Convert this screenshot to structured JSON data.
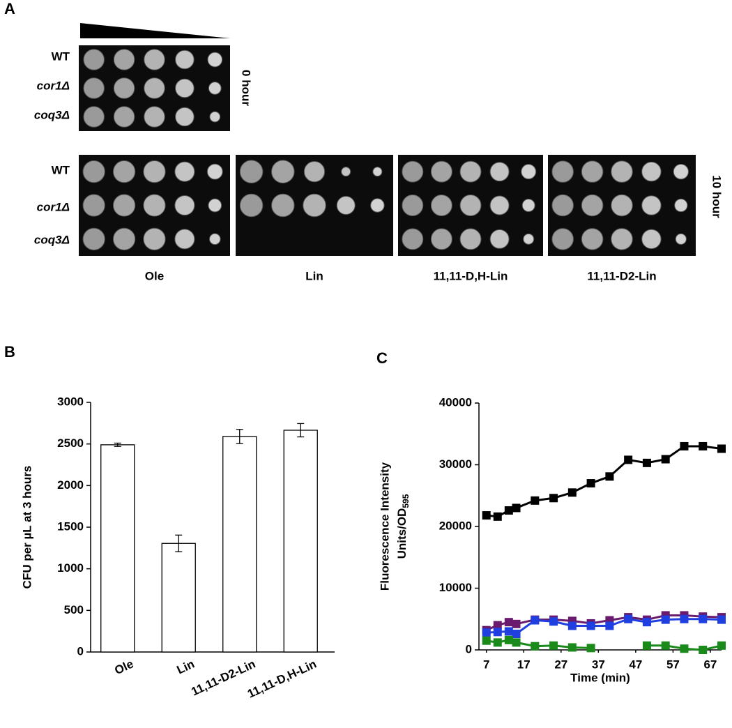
{
  "panel_a": {
    "panel_label": "A",
    "row_labels": [
      "WT",
      "cor1Δ",
      "coq3Δ"
    ],
    "time_labels": [
      "0 hour",
      "10 hour"
    ],
    "column_labels": [
      "Ole",
      "Lin",
      "11,11-D,H-Lin",
      "11,11-D2-Lin"
    ]
  },
  "chart_data": [
    {
      "type": "bar",
      "panel_label": "B",
      "y_label": "CFU per µL at 3  hours",
      "categories": [
        "Ole",
        "Lin",
        "11,11-D2-Lin",
        "11,11-D,H-Lin"
      ],
      "values": [
        2490,
        1305,
        2590,
        2665
      ],
      "errors": [
        20,
        100,
        85,
        80
      ],
      "color": "#ffffff",
      "ylim": [
        0,
        3000
      ],
      "yticks": [
        0,
        500,
        1000,
        1500,
        2000,
        2500,
        3000
      ]
    },
    {
      "type": "line",
      "panel_label": "C",
      "y_label": [
        "Fluorescence Intensity",
        "Units/OD",
        "595"
      ],
      "x_label": "Time (min)",
      "x": [
        7,
        10,
        13,
        15,
        20,
        25,
        30,
        35,
        40,
        45,
        50,
        55,
        60,
        65,
        70
      ],
      "series": [
        {
          "color": "#000000",
          "values": [
            21800,
            21600,
            22600,
            23000,
            24200,
            24600,
            25500,
            27000,
            28100,
            30800,
            30300,
            30900,
            33000,
            33000,
            32600
          ]
        },
        {
          "color": "#6a1b6e",
          "values": [
            3200,
            4000,
            4500,
            4200,
            4900,
            4900,
            4700,
            4300,
            4800,
            5300,
            4900,
            5600,
            5600,
            5400,
            5300
          ]
        },
        {
          "color": "#1f3fe0",
          "values": [
            2800,
            2900,
            3000,
            2600,
            4800,
            4600,
            3900,
            3900,
            3900,
            5000,
            4500,
            4900,
            5000,
            5000,
            4900
          ]
        },
        {
          "color": "#1a8a1a",
          "values": [
            1500,
            1200,
            1600,
            1200,
            600,
            700,
            400,
            300,
            null,
            null,
            700,
            700,
            200,
            0,
            700
          ]
        }
      ],
      "xlim": [
        5,
        70
      ],
      "xticks": [
        7,
        17,
        27,
        37,
        47,
        57,
        67
      ],
      "ylim": [
        0,
        40000
      ],
      "yticks": [
        0,
        10000,
        20000,
        30000,
        40000
      ]
    }
  ]
}
